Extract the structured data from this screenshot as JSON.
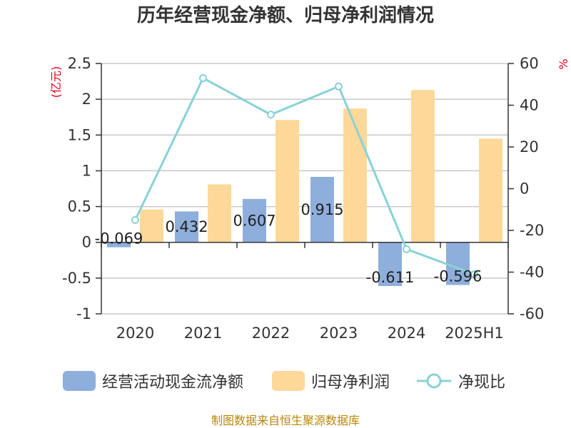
{
  "chart_data": {
    "type": "bar",
    "title": "历年经营现金净额、归母净利润情况",
    "categories": [
      "2020",
      "2021",
      "2022",
      "2023",
      "2024",
      "2025H1"
    ],
    "y_left": {
      "unit": "(亿元)",
      "ylim": [
        -1,
        2.5
      ],
      "ticks": [
        2.5,
        2,
        1.5,
        1,
        0.5,
        0,
        -0.5,
        -1
      ],
      "tick_labels": [
        "2.5",
        "2",
        "1.5",
        "1",
        "0.5",
        "0",
        "-0.5",
        "-1"
      ]
    },
    "y_right": {
      "unit": "%",
      "ylim": [
        -60,
        60
      ],
      "ticks": [
        60,
        40,
        20,
        0,
        -20,
        -40,
        -60
      ],
      "tick_labels": [
        "60",
        "40",
        "20",
        "0",
        "-20",
        "-40",
        "-60"
      ]
    },
    "grid": true,
    "legend_position": "bottom",
    "series": [
      {
        "name": "经营活动现金流净额",
        "type": "bar",
        "axis": "left",
        "color": "#8eaedc",
        "values": [
          -0.069,
          0.432,
          0.607,
          0.915,
          -0.611,
          -0.596
        ],
        "labels": [
          "-0.069",
          "0.432",
          "0.607",
          "0.915",
          "-0.611",
          "-0.596"
        ]
      },
      {
        "name": "归母净利润",
        "type": "bar",
        "axis": "left",
        "color": "#fdd899",
        "values": [
          0.46,
          0.81,
          1.71,
          1.87,
          2.13,
          1.45
        ]
      },
      {
        "name": "净现比",
        "type": "line",
        "axis": "right",
        "color": "#88d2d6",
        "values": [
          -15,
          53,
          35.5,
          49,
          -29,
          -41
        ]
      }
    ],
    "source": "制图数据来自恒生聚源数据库"
  }
}
